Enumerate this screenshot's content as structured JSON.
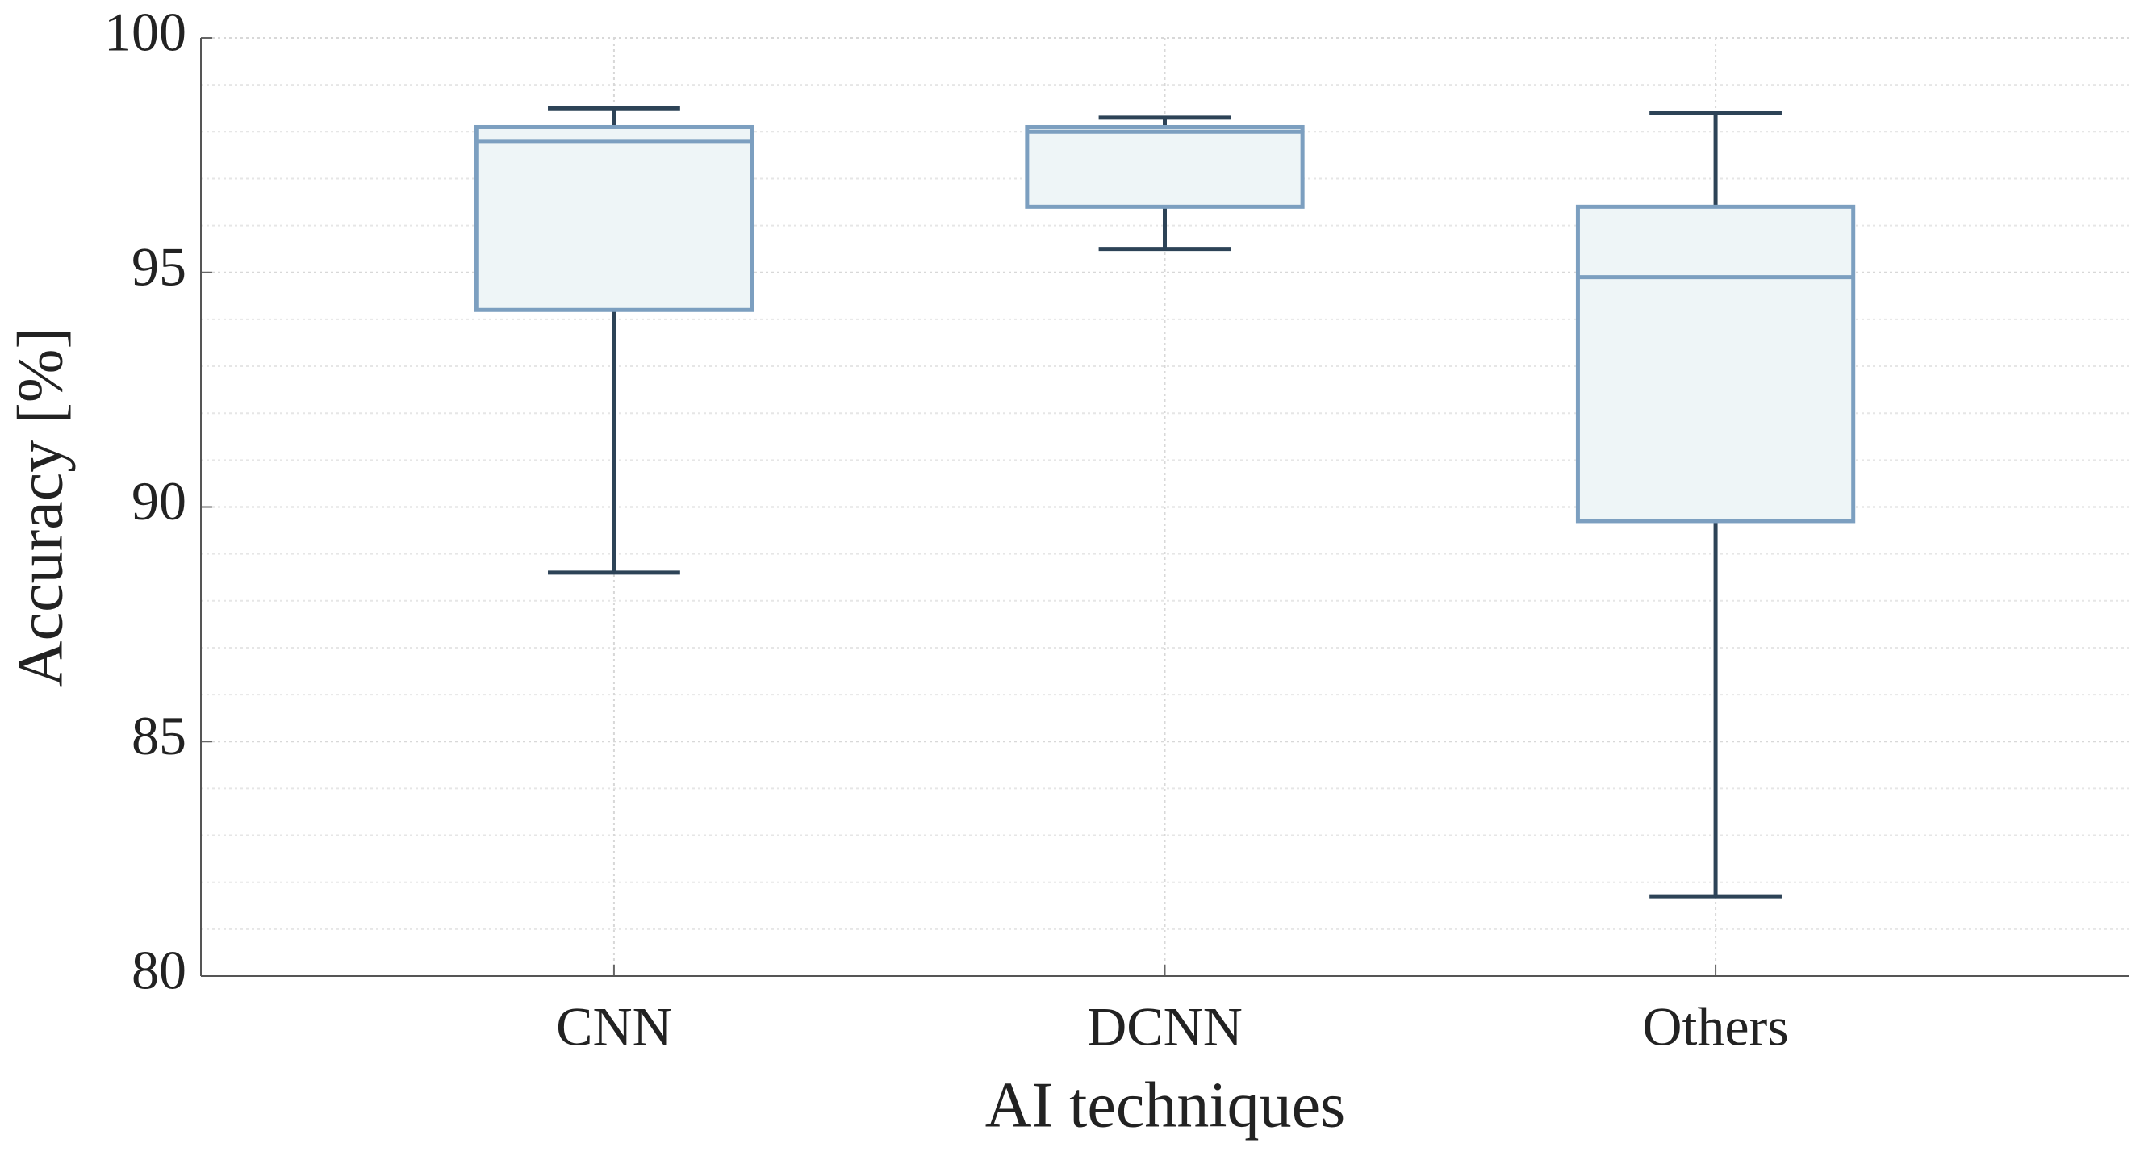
{
  "chart_data": {
    "type": "box",
    "xlabel": "AI techniques",
    "ylabel": "Accuracy [%]",
    "categories": [
      "CNN",
      "DCNN",
      "Others"
    ],
    "boxes": [
      {
        "min": 88.6,
        "q1": 94.2,
        "median": 97.8,
        "q3": 98.1,
        "max": 98.5
      },
      {
        "min": 95.5,
        "q1": 96.4,
        "median": 98.0,
        "q3": 98.1,
        "max": 98.3
      },
      {
        "min": 81.7,
        "q1": 89.7,
        "median": 94.9,
        "q3": 96.4,
        "max": 98.4
      }
    ],
    "box_color": "#7c9fc0",
    "box_fill": "#eef5f7",
    "whisker_color": "#2d4357",
    "ylim": [
      80,
      100
    ],
    "yticks": [
      80,
      85,
      90,
      95,
      100
    ],
    "yminorticks": [
      81,
      82,
      83,
      84,
      86,
      87,
      88,
      89,
      91,
      92,
      93,
      94,
      96,
      97,
      98,
      99
    ],
    "grid": true
  }
}
